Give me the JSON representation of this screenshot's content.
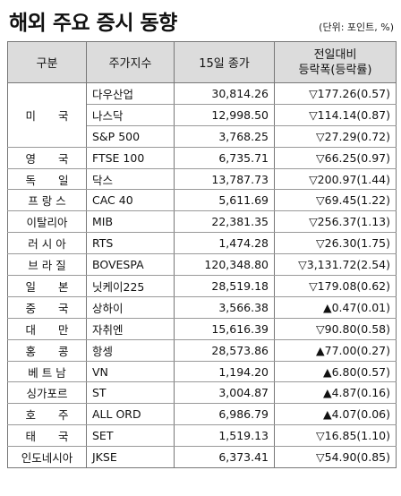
{
  "title": "해외 주요 증시 동향",
  "unit": "(단위: 포인트, %)",
  "headers": {
    "region": "구분",
    "index": "주가지수",
    "close": "15일 종가",
    "change_line1": "전일대비",
    "change_line2": "등락폭(등락률)"
  },
  "us_region": "미　　국",
  "rows": [
    {
      "index": "다우산업",
      "close": "30,814.26",
      "change": "▽177.26(0.57)"
    },
    {
      "index": "나스닥",
      "close": "12,998.50",
      "change": "▽114.14(0.87)"
    },
    {
      "index": "S&P 500",
      "close": "3,768.25",
      "change": "▽27.29(0.72)"
    },
    {
      "region": "영　　국",
      "index": "FTSE 100",
      "close": "6,735.71",
      "change": "▽66.25(0.97)"
    },
    {
      "region": "독　　일",
      "index": "닥스",
      "close": "13,787.73",
      "change": "▽200.97(1.44)"
    },
    {
      "region": "프 랑 스",
      "index": "CAC 40",
      "close": "5,611.69",
      "change": "▽69.45(1.22)"
    },
    {
      "region": "이탈리아",
      "index": "MIB",
      "close": "22,381.35",
      "change": "▽256.37(1.13)"
    },
    {
      "region": "러 시 아",
      "index": "RTS",
      "close": "1,474.28",
      "change": "▽26.30(1.75)"
    },
    {
      "region": "브 라 질",
      "index": "BOVESPA",
      "close": "120,348.80",
      "change": "▽3,131.72(2.54)"
    },
    {
      "region": "일　　본",
      "index": "닛케이225",
      "close": "28,519.18",
      "change": "▽179.08(0.62)"
    },
    {
      "region": "중　　국",
      "index": "상하이",
      "close": "3,566.38",
      "change": "▲0.47(0.01)"
    },
    {
      "region": "대　　만",
      "index": "자취엔",
      "close": "15,616.39",
      "change": "▽90.80(0.58)"
    },
    {
      "region": "홍　　콩",
      "index": "항셍",
      "close": "28,573.86",
      "change": "▲77.00(0.27)"
    },
    {
      "region": "베 트 남",
      "index": "VN",
      "close": "1,194.20",
      "change": "▲6.80(0.57)"
    },
    {
      "region": "싱가포르",
      "index": "ST",
      "close": "3,004.87",
      "change": "▲4.87(0.16)"
    },
    {
      "region": "호　　주",
      "index": "ALL ORD",
      "close": "6,986.79",
      "change": "▲4.07(0.06)"
    },
    {
      "region": "태　　국",
      "index": "SET",
      "close": "1,519.13",
      "change": "▽16.85(1.10)"
    },
    {
      "region": "인도네시아",
      "index": "JKSE",
      "close": "6,373.41",
      "change": "▽54.90(0.85)"
    }
  ]
}
